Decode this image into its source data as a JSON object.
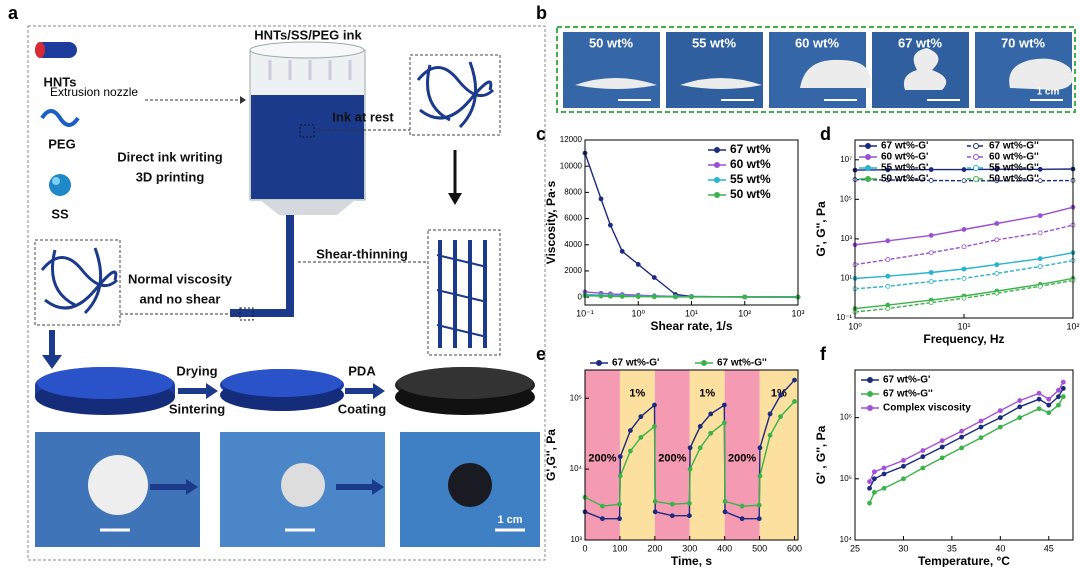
{
  "panel_labels": [
    "a",
    "b",
    "c",
    "d",
    "e",
    "f"
  ],
  "schematic": {
    "ink_title": "HNTs/SS/PEG ink",
    "materials": [
      "HNTs",
      "PEG",
      "SS"
    ],
    "nozzle": "Extrusion nozzle",
    "ink_at_rest": "Ink at rest",
    "process": [
      "Direct ink writing",
      "3D printing"
    ],
    "shear_thinning": "Shear-thinning",
    "normal": [
      "Normal viscosity",
      "and no shear"
    ],
    "step1": [
      "Drying",
      "Sintering"
    ],
    "step2": [
      "PDA",
      "Coating"
    ],
    "scale_bar": "1 cm"
  },
  "photos": {
    "labels": [
      "50 wt%",
      "55 wt%",
      "60 wt%",
      "67 wt%",
      "70 wt%"
    ],
    "scale_bar": "1 cm"
  },
  "chart_data": [
    {
      "type": "line",
      "x_label": "Shear rate, 1/s",
      "y_label": "Viscosity, Pa·s",
      "xscale": "log",
      "legend": "upper-right",
      "x": [
        0.1,
        0.2,
        0.3,
        0.5,
        1,
        2,
        5,
        10,
        100,
        1000
      ],
      "xlim": [
        0.1,
        1000
      ],
      "xticks": [
        {
          "value": 0.1,
          "label": "10⁻¹"
        },
        {
          "value": 1,
          "label": "10⁰"
        },
        {
          "value": 10,
          "label": "10¹"
        },
        {
          "value": 100,
          "label": "10²"
        },
        {
          "value": 1000,
          "label": "10³"
        }
      ],
      "ylim": [
        -600,
        12000
      ],
      "yticks": [
        0,
        2000,
        4000,
        6000,
        8000,
        10000,
        12000
      ],
      "series": [
        {
          "name": "67 wt%",
          "color": "#1c2b7f",
          "values": [
            11000,
            7500,
            5500,
            3500,
            2500,
            1500,
            200,
            50,
            20,
            10
          ]
        },
        {
          "name": "60 wt%",
          "color": "#9b4fd6",
          "values": [
            400,
            300,
            250,
            200,
            150,
            100,
            60,
            40,
            20,
            10
          ]
        },
        {
          "name": "55 wt%",
          "color": "#27b3d0",
          "values": [
            200,
            150,
            120,
            100,
            80,
            60,
            40,
            30,
            15,
            8
          ]
        },
        {
          "name": "50 wt%",
          "color": "#3bb34a",
          "values": [
            100,
            80,
            60,
            50,
            40,
            30,
            20,
            15,
            10,
            5
          ]
        }
      ]
    },
    {
      "type": "line",
      "x_label": "Frequency, Hz",
      "y_label": "G', G'', Pa",
      "xscale": "log",
      "yscale": "log",
      "legend": "top",
      "x": [
        1,
        2,
        5,
        10,
        20,
        50,
        100
      ],
      "xlim": [
        1,
        100
      ],
      "xticks": [
        {
          "value": 1,
          "label": "10⁰"
        },
        {
          "value": 10,
          "label": "10¹"
        },
        {
          "value": 100,
          "label": "10²"
        }
      ],
      "ylim": [
        0.1,
        100000000
      ],
      "yticks": [
        {
          "value": 0.1,
          "label": "10⁻¹"
        },
        {
          "value": 10,
          "label": "10¹"
        },
        {
          "value": 1000,
          "label": "10³"
        },
        {
          "value": 100000,
          "label": "10⁵"
        },
        {
          "value": 10000000,
          "label": "10⁷"
        }
      ],
      "series": [
        {
          "name": "67 wt%-G'",
          "color": "#1c2b7f",
          "values": [
            3000000,
            3100000,
            3200000,
            3200000,
            3300000,
            3300000,
            3400000
          ]
        },
        {
          "name": "67 wt%-G''",
          "color": "#1c2b7f",
          "dashed": true,
          "values": [
            1000000,
            950000,
            900000,
            880000,
            870000,
            880000,
            900000
          ]
        },
        {
          "name": "60 wt%-G'",
          "color": "#9b4fd6",
          "values": [
            500,
            800,
            1500,
            3000,
            6000,
            15000,
            40000
          ]
        },
        {
          "name": "60 wt%-G''",
          "color": "#9b4fd6",
          "dashed": true,
          "values": [
            50,
            90,
            200,
            400,
            900,
            2000,
            5000
          ]
        },
        {
          "name": "55 wt%-G'",
          "color": "#27b3d0",
          "values": [
            10,
            13,
            20,
            30,
            50,
            100,
            200
          ]
        },
        {
          "name": "55 wt%-G''",
          "color": "#27b3d0",
          "dashed": true,
          "values": [
            3,
            4,
            7,
            10,
            18,
            40,
            80
          ]
        },
        {
          "name": "50 wt%-G'",
          "color": "#3bb34a",
          "values": [
            0.3,
            0.45,
            0.8,
            1.3,
            2.3,
            5,
            10
          ]
        },
        {
          "name": "50 wt%-G''",
          "color": "#3bb34a",
          "dashed": true,
          "values": [
            0.2,
            0.3,
            0.6,
            1,
            1.8,
            4,
            8
          ]
        }
      ]
    },
    {
      "type": "line",
      "x_label": "Time, s",
      "y_label": "G',G'', Pa",
      "yscale": "log",
      "legend": "top",
      "x": [
        0,
        50,
        99,
        101,
        130,
        160,
        199,
        201,
        250,
        299,
        301,
        330,
        360,
        399,
        401,
        450,
        499,
        501,
        530,
        560,
        600
      ],
      "xlim": [
        0,
        610
      ],
      "xticks": [
        0,
        100,
        200,
        300,
        400,
        500,
        600
      ],
      "ylim": [
        1000,
        250000
      ],
      "yticks": [
        {
          "value": 1000,
          "label": "10³"
        },
        {
          "value": 10000,
          "label": "10⁴"
        },
        {
          "value": 100000,
          "label": "10⁵"
        }
      ],
      "bands": [
        {
          "x": [
            0,
            100
          ],
          "color": "#f59ab3",
          "label": "200%"
        },
        {
          "x": [
            100,
            200
          ],
          "color": "#fbe0a0",
          "label": "1%"
        },
        {
          "x": [
            200,
            300
          ],
          "color": "#f59ab3",
          "label": "200%"
        },
        {
          "x": [
            300,
            400
          ],
          "color": "#fbe0a0",
          "label": "1%"
        },
        {
          "x": [
            400,
            500
          ],
          "color": "#f59ab3",
          "label": "200%"
        },
        {
          "x": [
            500,
            610
          ],
          "color": "#fbe0a0",
          "label": "1%"
        }
      ],
      "series": [
        {
          "name": "67 wt%-G'",
          "color": "#1c2b7f",
          "values": [
            2500,
            2000,
            2000,
            15000,
            35000,
            55000,
            80000,
            2500,
            2200,
            2200,
            20000,
            40000,
            60000,
            80000,
            2500,
            2000,
            2000,
            20000,
            60000,
            110000,
            180000
          ]
        },
        {
          "name": "67 wt%-G''",
          "color": "#3bb34a",
          "values": [
            4000,
            3000,
            3200,
            8000,
            18000,
            28000,
            40000,
            3500,
            3200,
            3300,
            10000,
            20000,
            32000,
            45000,
            3500,
            3000,
            3100,
            8000,
            30000,
            55000,
            90000
          ]
        }
      ]
    },
    {
      "type": "line",
      "x_label": "Temperature, °C",
      "y_label": "G' , G'', Pa",
      "yscale": "log",
      "legend": "upper-left",
      "x": [
        26.5,
        27,
        28,
        30,
        32,
        34,
        36,
        38,
        40,
        42,
        44,
        45,
        46,
        46.5
      ],
      "xlim": [
        25,
        47.5
      ],
      "xticks": [
        25,
        30,
        35,
        40,
        45
      ],
      "ylim": [
        10000,
        6000000
      ],
      "yticks": [
        {
          "value": 10000,
          "label": "10⁴"
        },
        {
          "value": 100000,
          "label": "10⁵"
        },
        {
          "value": 1000000,
          "label": "10⁶"
        }
      ],
      "series": [
        {
          "name": "67 wt%-G'",
          "color": "#1c2b7f",
          "values": [
            70000,
            100000,
            120000,
            160000,
            230000,
            330000,
            480000,
            700000,
            1000000,
            1500000,
            2000000,
            1600000,
            2200000,
            3000000
          ]
        },
        {
          "name": "67 wt%-G''",
          "color": "#3bb34a",
          "values": [
            40000,
            60000,
            70000,
            100000,
            150000,
            220000,
            320000,
            470000,
            700000,
            1000000,
            1400000,
            1200000,
            1600000,
            2200000
          ]
        },
        {
          "name": "Complex viscosity",
          "color": "#a64fd8",
          "values": [
            90000,
            130000,
            150000,
            200000,
            290000,
            420000,
            600000,
            880000,
            1300000,
            1900000,
            2500000,
            2000000,
            2800000,
            3800000
          ]
        }
      ]
    }
  ]
}
